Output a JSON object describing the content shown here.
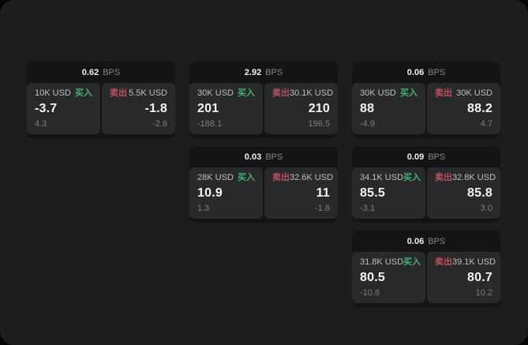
{
  "labels": {
    "bps": "BPS",
    "buy": "买入",
    "sell": "卖出"
  },
  "colors": {
    "buy_green": "#3eb374",
    "sell_red": "#c04f5e",
    "window_bg": "#1c1d1e",
    "card_bg": "#131415",
    "panel_bg": "#28292b",
    "value_text": "#f5f5f6",
    "muted_text": "#7c7e81"
  },
  "cards": [
    {
      "bps": "0.62",
      "buy": {
        "amount": "10K USD",
        "value": "-3.7",
        "sub": "4.3"
      },
      "sell": {
        "amount": "5.5K USD",
        "value": "-1.8",
        "sub": "-2.6"
      }
    },
    {
      "bps": "2.92",
      "buy": {
        "amount": "30K USD",
        "value": "201",
        "sub": "-188.1"
      },
      "sell": {
        "amount": "30.1K USD",
        "value": "210",
        "sub": "196.5"
      }
    },
    {
      "bps": "0.06",
      "buy": {
        "amount": "30K USD",
        "value": "88",
        "sub": "-4.9"
      },
      "sell": {
        "amount": "30K USD",
        "value": "88.2",
        "sub": "4.7"
      }
    },
    {
      "bps": "0.03",
      "buy": {
        "amount": "28K USD",
        "value": "10.9",
        "sub": "1.3"
      },
      "sell": {
        "amount": "32.6K USD",
        "value": "11",
        "sub": "-1.8"
      }
    },
    {
      "bps": "0.09",
      "buy": {
        "amount": "34.1K USD",
        "value": "85.5",
        "sub": "-3.1"
      },
      "sell": {
        "amount": "32.8K USD",
        "value": "85.8",
        "sub": "3.0"
      }
    },
    {
      "bps": "0.06",
      "buy": {
        "amount": "31.8K USD",
        "value": "80.5",
        "sub": "-10.8"
      },
      "sell": {
        "amount": "39.1K USD",
        "value": "80.7",
        "sub": "10.2"
      }
    }
  ]
}
